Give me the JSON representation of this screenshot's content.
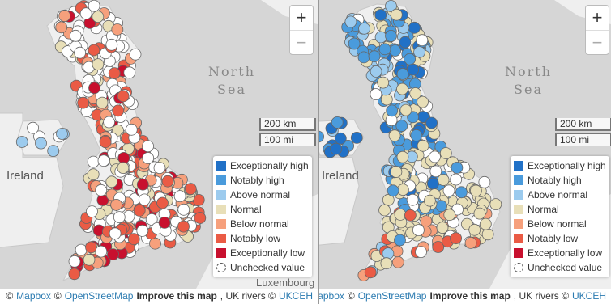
{
  "panels": [
    {
      "zoom_in": "+",
      "zoom_out": "−",
      "sea_label": "North Sea",
      "land_label": "Ireland",
      "town_label": "Luxembourg",
      "scale": [
        "200 km",
        "100 mi"
      ],
      "legend": [
        {
          "label": "Exceptionally high",
          "color": "#2171c7"
        },
        {
          "label": "Notably high",
          "color": "#4a9bdc"
        },
        {
          "label": "Above normal",
          "color": "#9ccbee"
        },
        {
          "label": "Normal",
          "color": "#e8dfb8"
        },
        {
          "label": "Below normal",
          "color": "#f6a07c"
        },
        {
          "label": "Notably low",
          "color": "#ea5b45"
        },
        {
          "label": "Exceptionally low",
          "color": "#c8102e"
        },
        {
          "label": "Unchecked value",
          "color": "#ffffff",
          "style": "dashed-circle"
        }
      ],
      "attribution": [
        "©",
        "Mapbox",
        "©",
        "OpenStreetMap",
        "Improve this map",
        ", UK rivers ©",
        "UKCEH"
      ]
    },
    {
      "zoom_in": "+",
      "zoom_out": "−",
      "sea_label": "North Sea",
      "land_label": "Ireland",
      "scale": [
        "200 km",
        "100 mi"
      ],
      "legend": [
        {
          "label": "Exceptionally high",
          "color": "#2171c7"
        },
        {
          "label": "Notably high",
          "color": "#4a9bdc"
        },
        {
          "label": "Above normal",
          "color": "#9ccbee"
        },
        {
          "label": "Normal",
          "color": "#e8dfb8"
        },
        {
          "label": "Below normal",
          "color": "#f6a07c"
        },
        {
          "label": "Notably low",
          "color": "#ea5b45"
        },
        {
          "label": "Exceptionally low",
          "color": "#c8102e"
        },
        {
          "label": "Unchecked value",
          "color": "#ffffff",
          "style": "dashed-circle"
        }
      ],
      "attribution": [
        "©",
        "Mapbox",
        "©",
        "OpenStreetMap",
        "Improve this map",
        ", UK rivers ©",
        "UKCEH"
      ]
    }
  ]
}
